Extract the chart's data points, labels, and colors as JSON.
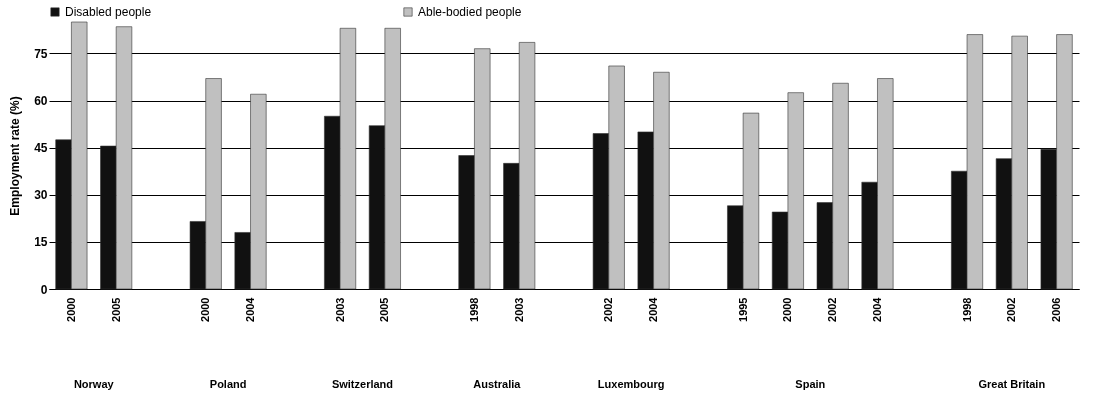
{
  "chart_data": {
    "type": "bar",
    "ylabel": "Employment rate (%)",
    "categories": [
      "2000",
      "2005",
      null,
      "2000",
      "2004",
      null,
      "2003",
      "2005",
      null,
      "1998",
      "2003",
      null,
      "2002",
      "2004",
      null,
      "1995",
      "2000",
      "2002",
      "2004",
      null,
      "1998",
      "2002",
      "2006"
    ],
    "series": [
      {
        "name": "Disabled people",
        "color": "#111111",
        "values": [
          47.5,
          45.5,
          null,
          21.5,
          18,
          null,
          55,
          52,
          null,
          42.5,
          40,
          null,
          49.5,
          50,
          null,
          26.5,
          24.5,
          27.5,
          34,
          null,
          37.5,
          41.5,
          44.5
        ]
      },
      {
        "name": "Able-bodied people",
        "color": "#c0c0c0",
        "values": [
          85,
          83.5,
          null,
          67,
          62,
          null,
          83,
          83,
          null,
          76.5,
          78.5,
          null,
          71,
          69,
          null,
          56,
          62.5,
          65.5,
          67,
          null,
          81,
          80.5,
          81
        ]
      }
    ],
    "annotations": [
      "Norway",
      "Poland",
      "Switzerland",
      "Australia",
      "Luxembourg",
      "Spain",
      "Great Britain"
    ],
    "ylim": [
      0,
      85
    ],
    "yticks": [
      0,
      15,
      30,
      45,
      60,
      75
    ],
    "grid": "y",
    "legend": "top"
  }
}
